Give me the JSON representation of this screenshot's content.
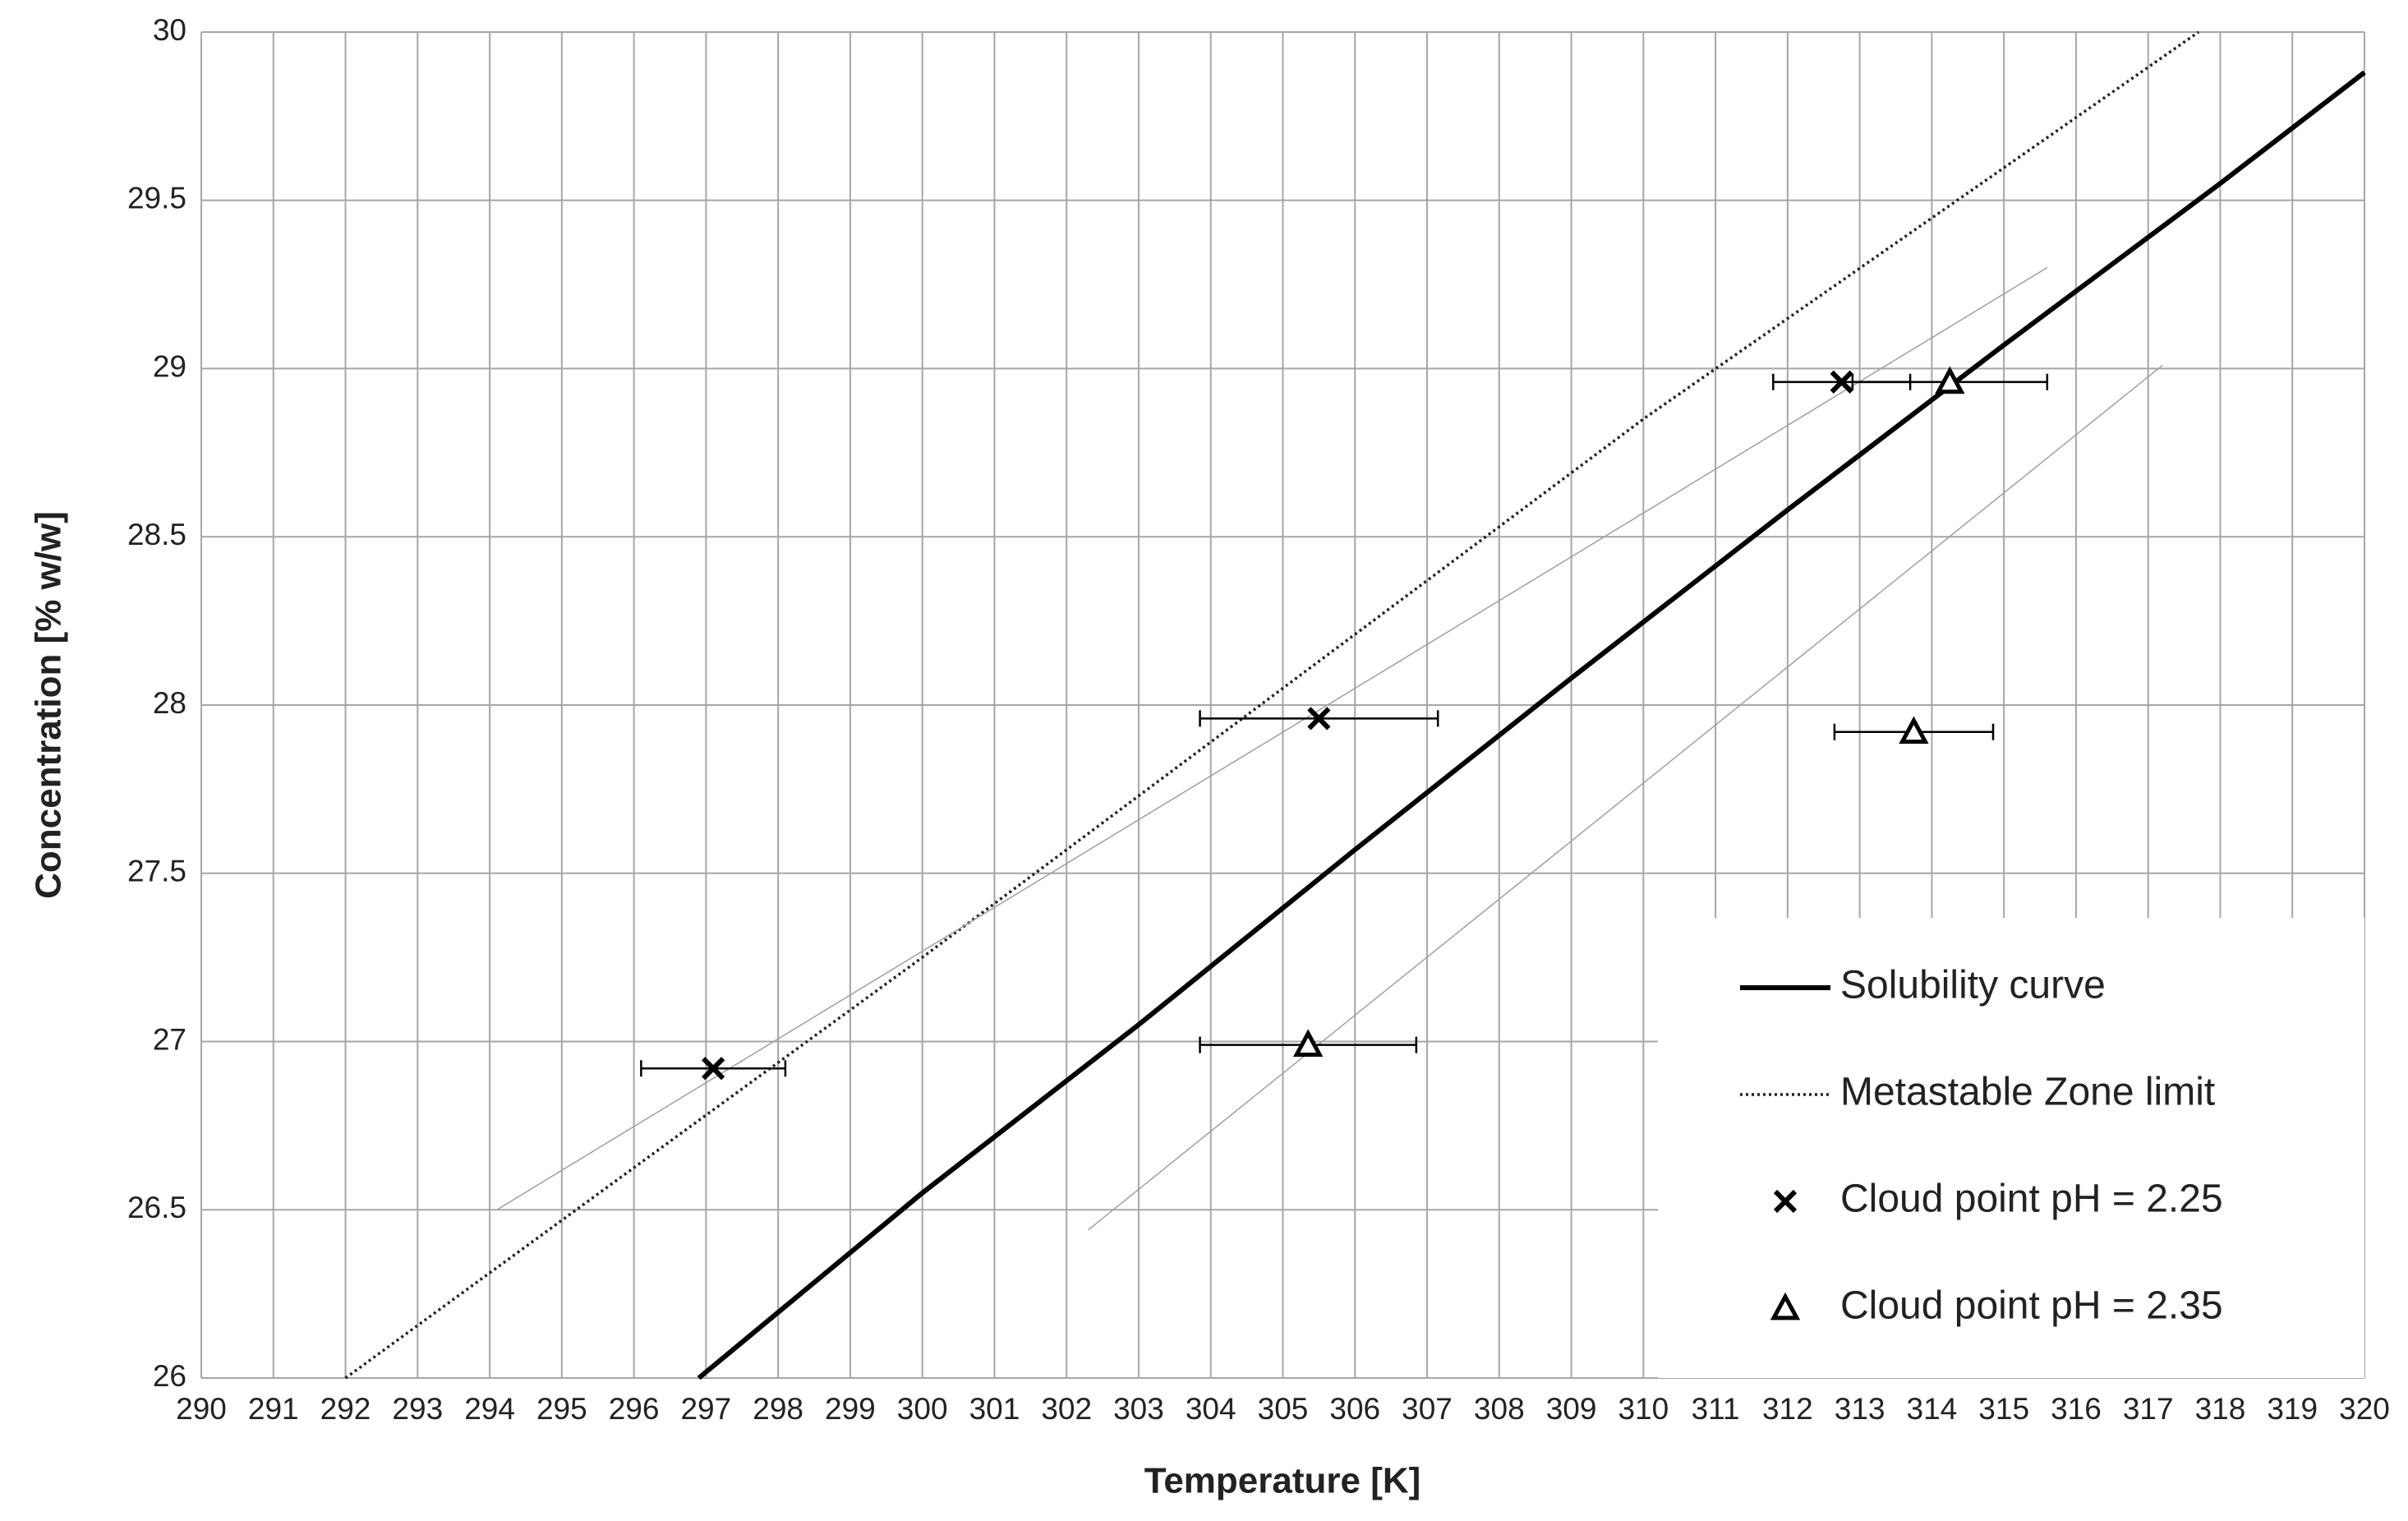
{
  "chart_data": {
    "type": "scatter",
    "xlabel": "Temperature [K]",
    "ylabel": "Concentration [% w/w]",
    "xlim": [
      290,
      320
    ],
    "xticks": [
      290,
      291,
      292,
      293,
      294,
      295,
      296,
      297,
      298,
      299,
      300,
      301,
      302,
      303,
      304,
      305,
      306,
      307,
      308,
      309,
      310,
      311,
      312,
      313,
      314,
      315,
      316,
      317,
      318,
      319,
      320
    ],
    "ylim": [
      26,
      30
    ],
    "yticks": [
      26,
      26.5,
      27,
      27.5,
      28,
      28.5,
      29,
      29.5,
      30
    ],
    "grid": true,
    "legend": "lower right",
    "series": [
      {
        "name": "Solubility curve",
        "color": "#000000",
        "style": "solid",
        "x": [
          296.9,
          300,
          303,
          306,
          309,
          312,
          315,
          318,
          320
        ],
        "values": [
          26.0,
          26.55,
          27.05,
          27.57,
          28.08,
          28.58,
          29.07,
          29.55,
          29.88
        ]
      },
      {
        "name": "Metastable Zone limit",
        "color": "#222222",
        "style": "dotted",
        "x": [
          292,
          300,
          305,
          310,
          317.7
        ],
        "values": [
          26.0,
          27.25,
          28.05,
          28.85,
          30.0
        ]
      },
      {
        "color": "#a0a0a0",
        "style": "thin",
        "x": [
          294.1,
          315.6
        ],
        "values": [
          26.5,
          29.3
        ]
      },
      {
        "color": "#a0a0a0",
        "style": "thin",
        "x": [
          302.3,
          317.2
        ],
        "values": [
          26.44,
          29.01
        ]
      },
      {
        "name": "Cloud point pH = 2.25",
        "color": "#000000",
        "marker": "x",
        "x": [
          297.1,
          305.5,
          312.75
        ],
        "values": [
          26.92,
          27.96,
          28.96
        ],
        "xerr": [
          1.0,
          1.65,
          0.95
        ]
      },
      {
        "name": "Cloud point pH = 2.35",
        "color": "#000000",
        "marker": "triangle",
        "x": [
          305.35,
          313.75,
          314.25
        ],
        "values": [
          26.99,
          27.92,
          28.96
        ],
        "xerr": [
          1.5,
          1.1,
          1.35
        ]
      }
    ]
  }
}
